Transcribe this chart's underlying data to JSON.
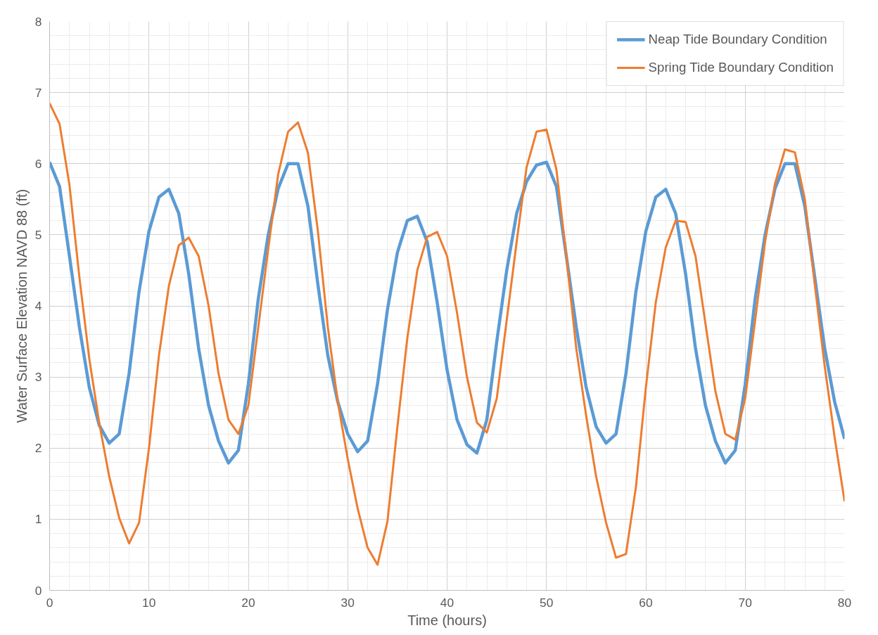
{
  "chart_data": {
    "type": "line",
    "xlabel": "Time (hours)",
    "ylabel": "Water Surface Elevation NAVD 88 (ft)",
    "x": [
      0,
      1,
      2,
      3,
      4,
      5,
      6,
      7,
      8,
      9,
      10,
      11,
      12,
      13,
      14,
      15,
      16,
      17,
      18,
      19,
      20,
      21,
      22,
      23,
      24,
      25,
      26,
      27,
      28,
      29,
      30,
      31,
      32,
      33,
      34,
      35,
      36,
      37,
      38,
      39,
      40,
      41,
      42,
      43,
      44,
      45,
      46,
      47,
      48,
      49,
      50,
      51,
      52,
      53,
      54,
      55,
      56,
      57,
      58,
      59,
      60,
      61,
      62,
      63,
      64,
      65,
      66,
      67,
      68,
      69,
      70,
      71,
      72,
      73,
      74,
      75,
      76,
      77,
      78,
      79,
      80
    ],
    "series": [
      {
        "name": "Neap Tide Boundary Condition",
        "color": "#5b9bd5",
        "values": [
          6.02,
          5.68,
          4.7,
          3.7,
          2.85,
          2.32,
          2.07,
          2.2,
          3.05,
          4.2,
          5.05,
          5.53,
          5.64,
          5.3,
          4.45,
          3.4,
          2.6,
          2.1,
          1.79,
          1.97,
          2.9,
          4.1,
          5.0,
          5.65,
          6.0,
          6.0,
          5.4,
          4.3,
          3.3,
          2.65,
          2.2,
          1.95,
          2.1,
          2.9,
          3.95,
          4.75,
          5.2,
          5.26,
          4.9,
          4.05,
          3.1,
          2.4,
          2.05,
          1.93,
          2.4,
          3.5,
          4.5,
          5.3,
          5.75,
          5.98,
          6.02,
          5.68,
          4.7,
          3.7,
          2.85,
          2.3,
          2.07,
          2.2,
          3.05,
          4.2,
          5.05,
          5.53,
          5.64,
          5.3,
          4.45,
          3.4,
          2.6,
          2.1,
          1.79,
          1.97,
          2.9,
          4.1,
          5.0,
          5.65,
          6.0,
          6.0,
          5.4,
          4.4,
          3.4,
          2.65,
          2.13
        ]
      },
      {
        "name": "Spring Tide Boundary Condition",
        "color": "#ed7d31",
        "values": [
          6.85,
          6.56,
          5.7,
          4.4,
          3.25,
          2.35,
          1.6,
          1.02,
          0.66,
          0.95,
          2.0,
          3.3,
          4.28,
          4.85,
          4.96,
          4.7,
          4.0,
          3.05,
          2.4,
          2.2,
          2.6,
          3.7,
          4.8,
          5.85,
          6.45,
          6.58,
          6.15,
          5.05,
          3.7,
          2.65,
          1.85,
          1.15,
          0.6,
          0.36,
          0.97,
          2.3,
          3.55,
          4.5,
          4.97,
          5.04,
          4.7,
          3.9,
          3.0,
          2.36,
          2.22,
          2.7,
          3.8,
          4.9,
          5.95,
          6.45,
          6.48,
          5.92,
          4.7,
          3.4,
          2.45,
          1.6,
          0.95,
          0.46,
          0.51,
          1.45,
          2.85,
          4.05,
          4.82,
          5.2,
          5.18,
          4.7,
          3.75,
          2.8,
          2.2,
          2.12,
          2.7,
          3.8,
          4.9,
          5.72,
          6.2,
          6.16,
          5.5,
          4.3,
          3.15,
          2.15,
          1.25
        ]
      }
    ],
    "xlim": [
      0,
      80
    ],
    "xticks": [
      0,
      10,
      20,
      30,
      40,
      50,
      60,
      70,
      80
    ],
    "ylim": [
      0,
      8
    ],
    "yticks": [
      0,
      1,
      2,
      3,
      4,
      5,
      6,
      7,
      8
    ],
    "grid": true,
    "legend": "top right",
    "marker": "none",
    "line_style": "solid"
  }
}
